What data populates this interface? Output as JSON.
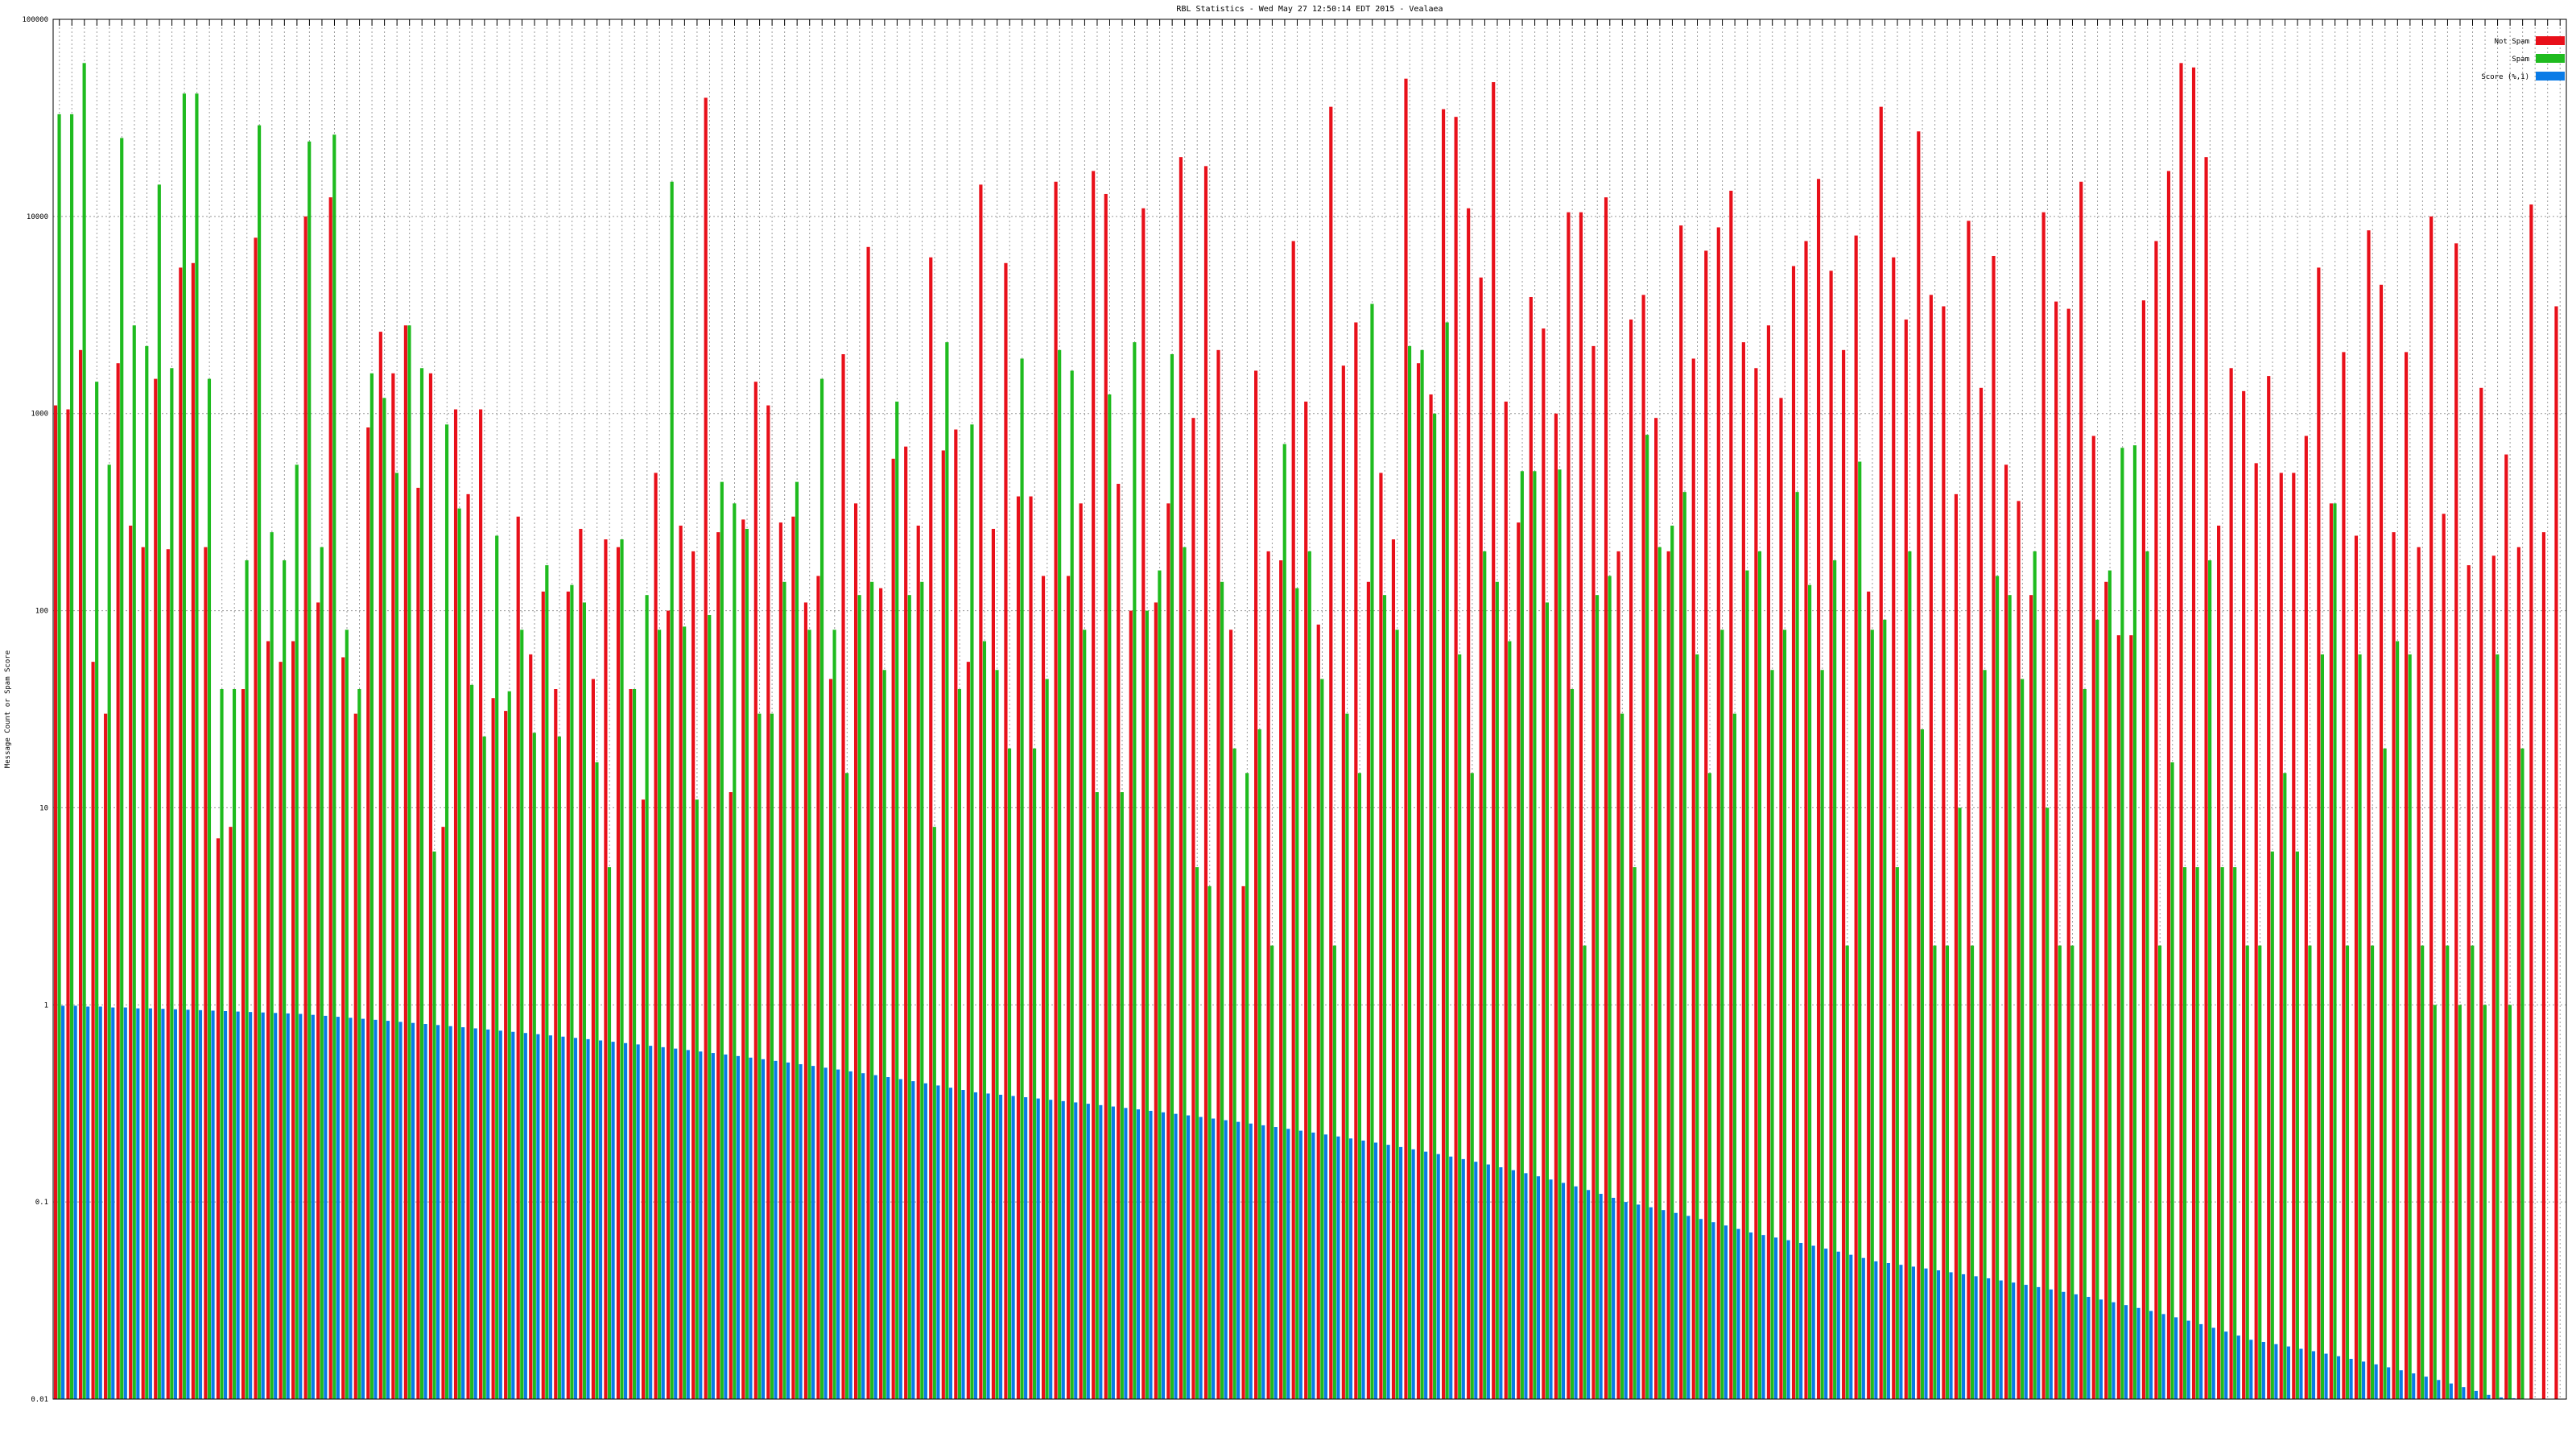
{
  "chart_data": {
    "type": "bar",
    "title": "RBL Statistics - Wed May 27 12:50:14 EDT 2015 - Vealaea",
    "ylabel": "Message Count or Spam Score",
    "xlabel": "",
    "y_scale": "log",
    "ylim": [
      0.01,
      100000
    ],
    "y_ticks": [
      "0.01",
      "0.1",
      "1",
      "10",
      "100",
      "1000",
      "10000",
      "100000"
    ],
    "grid": true,
    "legend_position": "top-right",
    "series": [
      {
        "name": "Not Spam",
        "color": "#e8101a",
        "values": [
          1100,
          1050,
          2100,
          55,
          30,
          1800,
          270,
          210,
          1500,
          205,
          5500,
          5800,
          210,
          7,
          8,
          40,
          7800,
          70,
          55,
          70,
          10000,
          110,
          12500,
          58,
          30,
          850,
          2600,
          1600,
          2800,
          420,
          1600,
          8,
          1050,
          390,
          1050,
          36,
          31,
          300,
          60,
          125,
          40,
          125,
          260,
          45,
          230,
          210,
          40,
          11,
          500,
          100,
          270,
          200,
          40000,
          250,
          12,
          290,
          1450,
          1100,
          280,
          300,
          110,
          150,
          45,
          2000,
          350,
          7000,
          130,
          590,
          680,
          270,
          6200,
          650,
          830,
          55,
          14500,
          260,
          5800,
          380,
          380,
          150,
          15000,
          150,
          350,
          17000,
          13000,
          440,
          100,
          11000,
          110,
          350,
          20000,
          950,
          18000,
          2100,
          80,
          4,
          1650,
          200,
          180,
          7500,
          1150,
          85,
          36000,
          1750,
          2900,
          140,
          500,
          230,
          50000,
          1800,
          1250,
          35000,
          32000,
          11000,
          4900,
          48000,
          1150,
          280,
          3900,
          2700,
          1000,
          10500,
          10500,
          2200,
          12500,
          200,
          3000,
          4000,
          950,
          200,
          9000,
          1900,
          6700,
          8800,
          13500,
          2300,
          1700,
          2800,
          1200,
          5600,
          7500,
          15500,
          5300,
          2100,
          8000,
          125,
          36000,
          6200,
          3000,
          27000,
          4000,
          3500,
          390,
          9500,
          1350,
          6300,
          550,
          360,
          120,
          10500,
          3700,
          3400,
          15000,
          770,
          140,
          75,
          75,
          3750,
          7500,
          17000,
          60000,
          57000,
          20000,
          270,
          1700,
          1300,
          560,
          1550,
          500,
          500,
          770,
          5500,
          350,
          2050,
          240,
          8500,
          4500,
          250,
          2050,
          210,
          10000,
          310,
          7300,
          170,
          1350,
          190,
          620,
          210,
          11500,
          250,
          3500
        ]
      },
      {
        "name": "Spam",
        "color": "#1fbb1f",
        "values": [
          33000,
          33000,
          60000,
          1450,
          550,
          25000,
          2800,
          2200,
          14500,
          1700,
          42000,
          42000,
          1500,
          40,
          40,
          180,
          29000,
          250,
          180,
          550,
          24000,
          210,
          26000,
          80,
          40,
          1600,
          1200,
          500,
          2800,
          1700,
          6,
          880,
          330,
          42,
          23,
          240,
          39,
          80,
          24,
          170,
          23,
          135,
          110,
          17,
          5,
          230,
          40,
          120,
          80,
          15000,
          83,
          11,
          95,
          450,
          350,
          260,
          30,
          30,
          140,
          450,
          80,
          1500,
          80,
          15,
          120,
          140,
          50,
          1150,
          120,
          140,
          8,
          2300,
          40,
          880,
          70,
          50,
          20,
          1900,
          20,
          45,
          2100,
          1650,
          80,
          12,
          1250,
          12,
          2300,
          100,
          160,
          2000,
          210,
          5,
          4,
          140,
          20,
          15,
          25,
          2,
          700,
          130,
          200,
          45,
          2,
          30,
          15,
          3600,
          120,
          80,
          2200,
          2100,
          1000,
          2900,
          60,
          15,
          200,
          140,
          70,
          510,
          510,
          110,
          520,
          40,
          2,
          120,
          150,
          30,
          5,
          780,
          210,
          270,
          400,
          60,
          15,
          80,
          30,
          160,
          200,
          50,
          80,
          400,
          135,
          50,
          180,
          2,
          570,
          80,
          90,
          5,
          200,
          25,
          2,
          2,
          10,
          2,
          50,
          150,
          120,
          45,
          200,
          10,
          2,
          2,
          40,
          90,
          160,
          670,
          690,
          200,
          2,
          17,
          5,
          5,
          180,
          5,
          5,
          2,
          2,
          6,
          15,
          6,
          2,
          60,
          350,
          2,
          60,
          2,
          20,
          70,
          60,
          2,
          1,
          2,
          1,
          2,
          1,
          60,
          1,
          20
        ]
      },
      {
        "name": "Score (%,1)",
        "color": "#0a7be6",
        "values": [
          0.99,
          0.99,
          0.98,
          0.98,
          0.97,
          0.97,
          0.96,
          0.96,
          0.955,
          0.95,
          0.945,
          0.94,
          0.935,
          0.93,
          0.925,
          0.92,
          0.915,
          0.91,
          0.905,
          0.9,
          0.89,
          0.88,
          0.87,
          0.86,
          0.85,
          0.84,
          0.83,
          0.82,
          0.81,
          0.8,
          0.79,
          0.78,
          0.77,
          0.76,
          0.75,
          0.74,
          0.73,
          0.72,
          0.71,
          0.7,
          0.69,
          0.68,
          0.67,
          0.66,
          0.65,
          0.64,
          0.63,
          0.62,
          0.61,
          0.6,
          0.59,
          0.58,
          0.57,
          0.56,
          0.55,
          0.54,
          0.53,
          0.52,
          0.51,
          0.5,
          0.49,
          0.48,
          0.47,
          0.46,
          0.45,
          0.44,
          0.43,
          0.42,
          0.41,
          0.4,
          0.39,
          0.38,
          0.37,
          0.36,
          0.355,
          0.35,
          0.345,
          0.34,
          0.335,
          0.33,
          0.325,
          0.32,
          0.315,
          0.31,
          0.305,
          0.3,
          0.295,
          0.29,
          0.285,
          0.28,
          0.275,
          0.27,
          0.265,
          0.26,
          0.255,
          0.25,
          0.245,
          0.24,
          0.235,
          0.23,
          0.225,
          0.22,
          0.215,
          0.21,
          0.205,
          0.2,
          0.195,
          0.19,
          0.185,
          0.18,
          0.175,
          0.17,
          0.165,
          0.16,
          0.155,
          0.15,
          0.145,
          0.14,
          0.135,
          0.13,
          0.125,
          0.12,
          0.115,
          0.11,
          0.105,
          0.1,
          0.097,
          0.094,
          0.091,
          0.088,
          0.085,
          0.082,
          0.079,
          0.076,
          0.073,
          0.07,
          0.068,
          0.066,
          0.064,
          0.062,
          0.06,
          0.058,
          0.056,
          0.054,
          0.052,
          0.05,
          0.049,
          0.048,
          0.047,
          0.046,
          0.045,
          0.044,
          0.043,
          0.042,
          0.041,
          0.04,
          0.039,
          0.038,
          0.037,
          0.036,
          0.035,
          0.034,
          0.033,
          0.032,
          0.031,
          0.03,
          0.029,
          0.028,
          0.027,
          0.026,
          0.025,
          0.024,
          0.023,
          0.022,
          0.021,
          0.02,
          0.0195,
          0.019,
          0.0185,
          0.018,
          0.0175,
          0.017,
          0.0165,
          0.016,
          0.0155,
          0.015,
          0.0145,
          0.014,
          0.0135,
          0.013,
          0.0125,
          0.012,
          0.0115,
          0.011,
          0.0105,
          0.0102,
          0.0101,
          0.01005,
          0.01003,
          0.01002,
          0.01001,
          0.01,
          0.01,
          0.01,
          0.01,
          0.01,
          0.01,
          0.01,
          0.01
        ]
      }
    ]
  }
}
